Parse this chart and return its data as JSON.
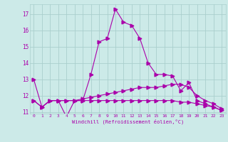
{
  "xlabel": "Windchill (Refroidissement éolien,°C)",
  "bg_color": "#cceae8",
  "grid_color": "#aacfcd",
  "line_color": "#aa00aa",
  "line1_x": [
    0,
    1,
    2,
    3,
    4,
    5,
    6,
    7,
    8,
    9,
    10,
    11,
    12,
    13,
    14,
    15,
    16,
    17,
    18,
    19,
    20,
    21,
    22,
    23
  ],
  "line1_y": [
    13.0,
    11.3,
    11.7,
    11.7,
    10.7,
    11.7,
    11.7,
    13.3,
    15.3,
    15.5,
    17.3,
    16.5,
    16.3,
    15.5,
    14.0,
    13.3,
    13.3,
    13.2,
    12.3,
    12.8,
    11.7,
    11.5,
    11.3,
    11.1
  ],
  "line2_x": [
    0,
    1,
    2,
    3,
    4,
    5,
    6,
    7,
    8,
    9,
    10,
    11,
    12,
    13,
    14,
    15,
    16,
    17,
    18,
    19,
    20,
    21,
    22,
    23
  ],
  "line2_y": [
    11.7,
    11.3,
    11.7,
    11.7,
    11.7,
    11.7,
    11.8,
    11.9,
    12.0,
    12.1,
    12.2,
    12.3,
    12.4,
    12.5,
    12.5,
    12.5,
    12.6,
    12.7,
    12.7,
    12.5,
    12.0,
    11.7,
    11.5,
    11.2
  ],
  "line3_x": [
    0,
    1,
    2,
    3,
    4,
    5,
    6,
    7,
    8,
    9,
    10,
    11,
    12,
    13,
    14,
    15,
    16,
    17,
    18,
    19,
    20,
    21,
    22,
    23
  ],
  "line3_y": [
    11.7,
    11.3,
    11.7,
    11.7,
    11.7,
    11.7,
    11.7,
    11.7,
    11.7,
    11.7,
    11.7,
    11.7,
    11.7,
    11.7,
    11.7,
    11.7,
    11.7,
    11.7,
    11.6,
    11.6,
    11.5,
    11.4,
    11.3,
    11.1
  ],
  "ylim": [
    10.9,
    17.6
  ],
  "xlim": [
    -0.5,
    23.5
  ],
  "yticks": [
    11,
    12,
    13,
    14,
    15,
    16,
    17
  ],
  "xticks": [
    0,
    1,
    2,
    3,
    4,
    5,
    6,
    7,
    8,
    9,
    10,
    11,
    12,
    13,
    14,
    15,
    16,
    17,
    18,
    19,
    20,
    21,
    22,
    23
  ]
}
